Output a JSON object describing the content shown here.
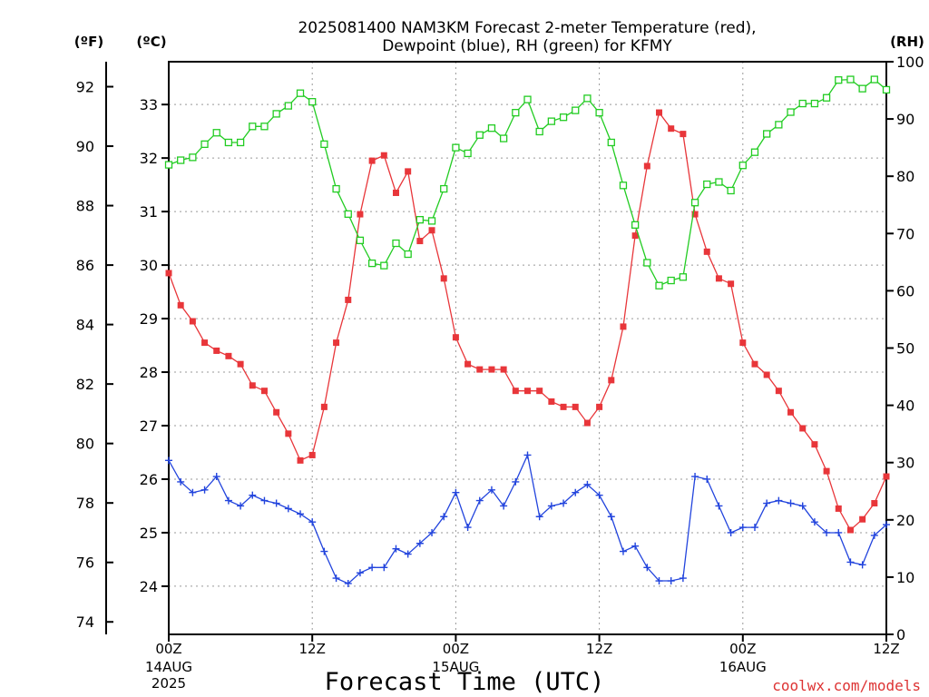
{
  "chart_data": {
    "type": "line",
    "title_line1": "2025081400 NAM3KM Forecast 2-meter Temperature (red),",
    "title_line2": "Dewpoint (blue), RH (green) for KFMY",
    "unit_f": "(ºF)",
    "unit_c": "(ºC)",
    "unit_rh": "(RH)",
    "xlabel": "Forecast Time (UTC)",
    "credit": "coolwx.com/models",
    "grid": true,
    "x_hours_range": [
      0,
      60
    ],
    "x_ticks": [
      {
        "hour": 0,
        "label": "00Z",
        "date": "14AUG",
        "year": "2025"
      },
      {
        "hour": 12,
        "label": "12Z",
        "date": "",
        "year": ""
      },
      {
        "hour": 24,
        "label": "00Z",
        "date": "15AUG",
        "year": ""
      },
      {
        "hour": 36,
        "label": "12Z",
        "date": "",
        "year": ""
      },
      {
        "hour": 48,
        "label": "00Z",
        "date": "16AUG",
        "year": ""
      },
      {
        "hour": 60,
        "label": "12Z",
        "date": "",
        "year": ""
      }
    ],
    "y_celsius_ticks": [
      24,
      25,
      26,
      27,
      28,
      29,
      30,
      31,
      32,
      33
    ],
    "y_fahrenheit_ticks": [
      74,
      76,
      78,
      80,
      82,
      84,
      86,
      88,
      90,
      92
    ],
    "y_rh_ticks": [
      0,
      10,
      20,
      30,
      40,
      50,
      60,
      70,
      80,
      90,
      100
    ],
    "y_celsius_range": [
      23.1,
      33.8
    ],
    "y_rh_range": [
      0,
      100
    ],
    "series": [
      {
        "name": "Temperature",
        "unit": "C",
        "color": "#e8363a",
        "marker": "filled-square",
        "values": [
          29.85,
          29.25,
          28.95,
          28.55,
          28.4,
          28.3,
          28.15,
          27.75,
          27.65,
          27.25,
          26.85,
          26.35,
          26.45,
          27.35,
          28.55,
          29.35,
          30.95,
          31.95,
          32.05,
          31.35,
          31.75,
          30.45,
          30.65,
          29.75,
          28.65,
          28.15,
          28.05,
          28.05,
          28.05,
          27.65,
          27.65,
          27.65,
          27.45,
          27.35,
          27.35,
          27.05,
          27.35,
          27.85,
          28.85,
          30.55,
          31.85,
          32.85,
          32.55,
          32.45,
          30.95,
          30.25,
          29.75,
          29.65,
          28.55,
          28.15,
          27.95,
          27.65,
          27.25,
          26.95,
          26.65,
          26.15,
          25.45,
          25.05,
          25.25,
          25.55,
          26.05
        ]
      },
      {
        "name": "Dewpoint",
        "unit": "C",
        "color": "#2244dd",
        "marker": "plus",
        "values": [
          26.35,
          25.95,
          25.75,
          25.8,
          26.05,
          25.6,
          25.5,
          25.7,
          25.6,
          25.55,
          25.45,
          25.35,
          25.2,
          24.65,
          24.15,
          24.05,
          24.25,
          24.35,
          24.35,
          24.7,
          24.6,
          24.8,
          25.0,
          25.3,
          25.75,
          25.1,
          25.6,
          25.8,
          25.5,
          25.95,
          26.45,
          25.3,
          25.5,
          25.55,
          25.75,
          25.9,
          25.7,
          25.3,
          24.65,
          24.75,
          24.35,
          24.1,
          24.1,
          24.15,
          26.05,
          26.0,
          25.5,
          25.0,
          25.1,
          25.1,
          25.55,
          25.6,
          25.55,
          25.5,
          25.2,
          25.0,
          25.0,
          24.45,
          24.4,
          24.95,
          25.15
        ]
      },
      {
        "name": "RH",
        "unit": "%",
        "color": "#22cc22",
        "marker": "open-square",
        "values": [
          82,
          82.8,
          83.3,
          85.6,
          87.6,
          85.9,
          85.9,
          88.7,
          88.7,
          90.9,
          92.3,
          94.5,
          93.0,
          85.6,
          77.8,
          73.4,
          68.8,
          64.8,
          64.4,
          68.3,
          66.4,
          72.4,
          72.2,
          77.8,
          85.0,
          84.0,
          87.2,
          88.4,
          86.6,
          91.1,
          93.4,
          87.8,
          89.6,
          90.3,
          91.5,
          93.6,
          91.1,
          85.9,
          78.4,
          71.5,
          64.9,
          60.9,
          61.8,
          62.4,
          75.4,
          78.6,
          79.0,
          77.5,
          81.9,
          84.2,
          87.4,
          89.0,
          91.2,
          92.7,
          92.7,
          93.7,
          96.8,
          96.9,
          95.3,
          96.9,
          95.1
        ]
      }
    ]
  }
}
